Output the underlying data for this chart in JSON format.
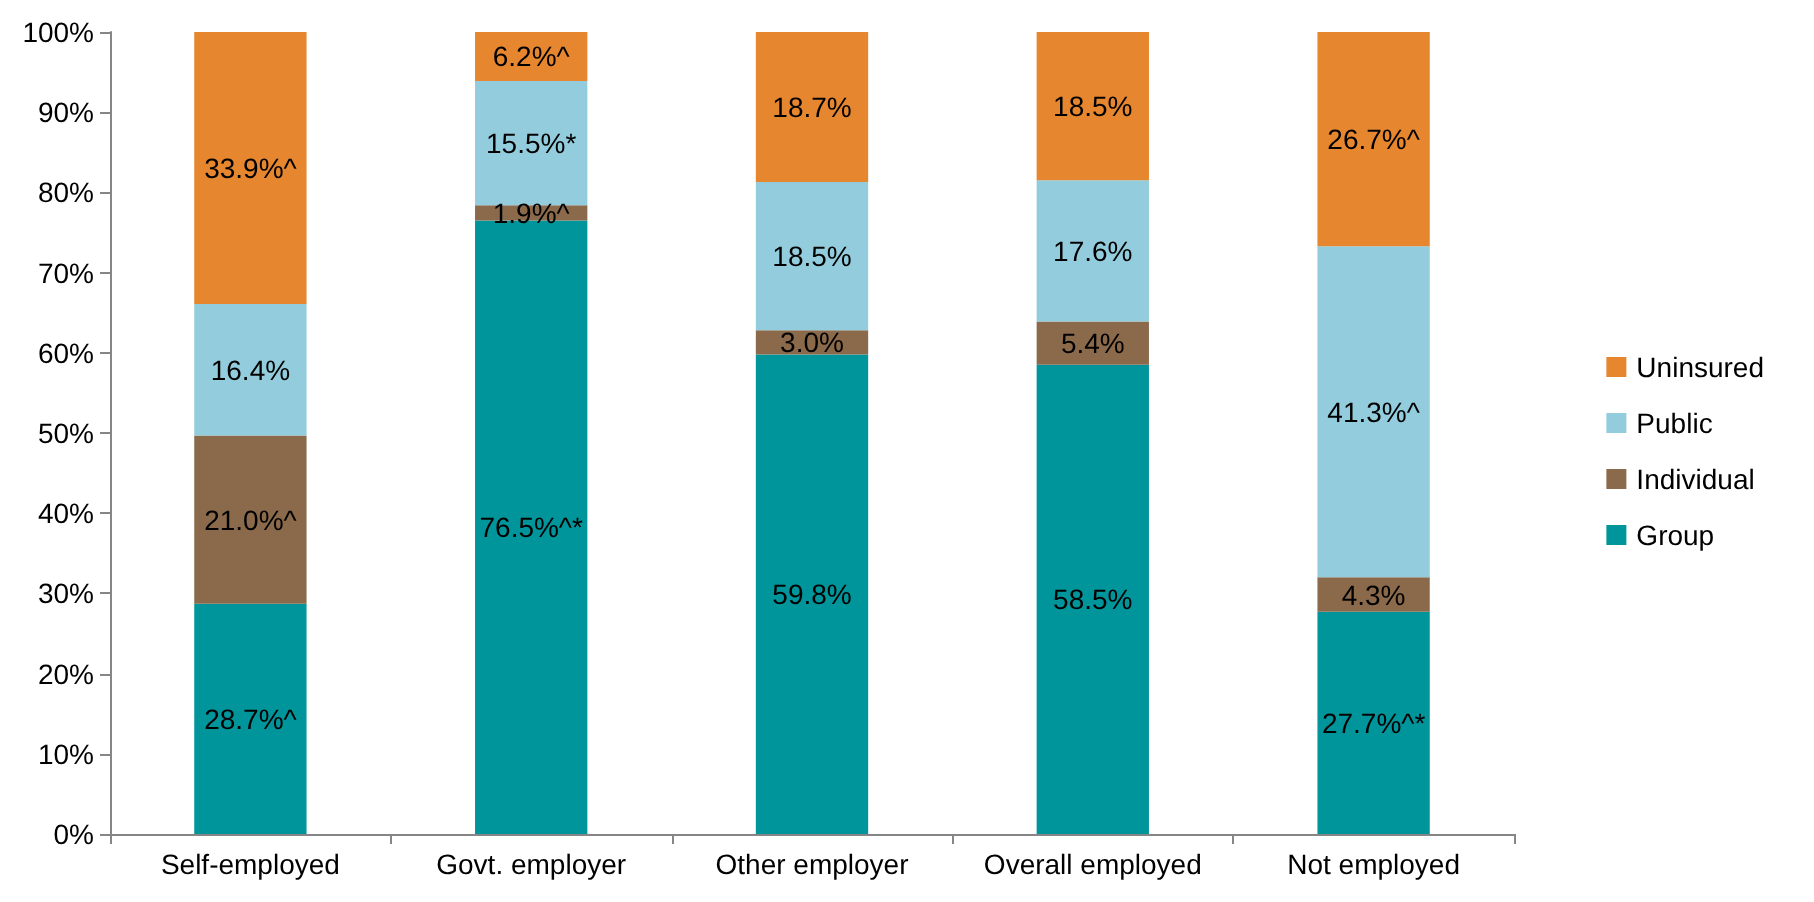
{
  "chart_data": {
    "type": "bar",
    "stacked": true,
    "categories": [
      "Self-employed",
      "Govt. employer",
      "Other employer",
      "Overall employed",
      "Not employed"
    ],
    "series": [
      {
        "name": "Group",
        "color": "#00959b",
        "values": [
          28.7,
          76.5,
          59.8,
          58.5,
          27.7
        ],
        "value_labels": [
          "28.7%^",
          "76.5%^*",
          "59.8%",
          "58.5%",
          "27.7%^*"
        ]
      },
      {
        "name": "Individual",
        "color": "#8b6a4c",
        "values": [
          21.0,
          1.9,
          3.0,
          5.4,
          4.3
        ],
        "value_labels": [
          "21.0%^",
          "1.9%^",
          "3.0%",
          "5.4%",
          "4.3%"
        ]
      },
      {
        "name": "Public",
        "color": "#93cddd",
        "values": [
          16.4,
          15.5,
          18.5,
          17.6,
          41.3
        ],
        "value_labels": [
          "16.4%",
          "15.5%*",
          "18.5%",
          "17.6%",
          "41.3%^"
        ]
      },
      {
        "name": "Uninsured",
        "color": "#e6862f",
        "values": [
          33.9,
          6.2,
          18.7,
          18.5,
          26.7
        ],
        "value_labels": [
          "33.9%^",
          "6.2%^",
          "18.7%",
          "18.5%",
          "26.7%^"
        ]
      }
    ],
    "ylim": [
      0,
      100
    ],
    "yticks": [
      {
        "value": 0,
        "label": "0%"
      },
      {
        "value": 10,
        "label": "10%"
      },
      {
        "value": 20,
        "label": "20%"
      },
      {
        "value": 30,
        "label": "30%"
      },
      {
        "value": 40,
        "label": "40%"
      },
      {
        "value": 50,
        "label": "50%"
      },
      {
        "value": 60,
        "label": "60%"
      },
      {
        "value": 70,
        "label": "70%"
      },
      {
        "value": 80,
        "label": "80%"
      },
      {
        "value": 90,
        "label": "90%"
      },
      {
        "value": 100,
        "label": "100%"
      }
    ],
    "legend": "right",
    "grid": false
  }
}
